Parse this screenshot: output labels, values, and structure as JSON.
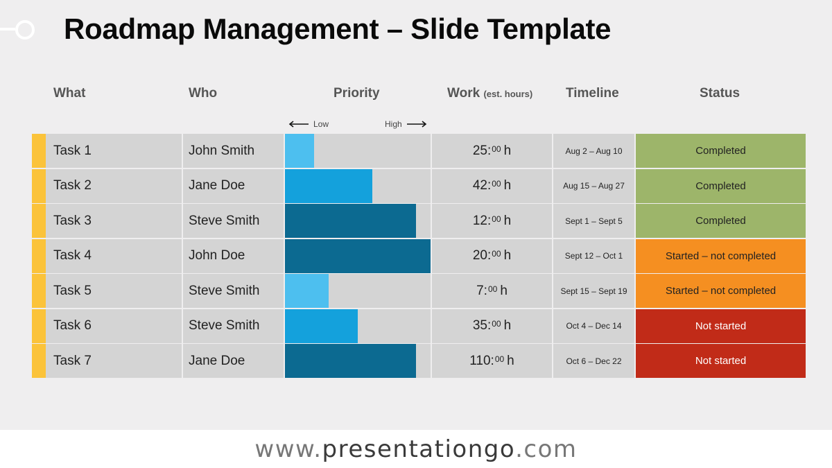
{
  "title": "Roadmap Management – Slide Template",
  "headers": {
    "what": "What",
    "who": "Who",
    "priority": "Priority",
    "work": "Work",
    "work_unit": "(est. hours)",
    "timeline": "Timeline",
    "status": "Status"
  },
  "priority_scale": {
    "low": "Low",
    "high": "High"
  },
  "colors": {
    "accent": "#fbc33a",
    "priority_low": "#4dbfef",
    "priority_mid": "#14a1dc",
    "priority_high": "#0c6a91",
    "completed": "#9db56a",
    "started": "#f58f21",
    "not_started": "#c12b18"
  },
  "tasks": [
    {
      "what": "Task 1",
      "who": "John Smith",
      "priority": 0.2,
      "priority_level": "low",
      "work_hours": "25:",
      "work_minutes": "00",
      "work_suffix": "h",
      "timeline": "Aug 2 – Aug 10",
      "status": "Completed",
      "status_type": "completed"
    },
    {
      "what": "Task 2",
      "who": "Jane Doe",
      "priority": 0.6,
      "priority_level": "mid",
      "work_hours": "42:",
      "work_minutes": "00",
      "work_suffix": "h",
      "timeline": "Aug 15 – Aug 27",
      "status": "Completed",
      "status_type": "completed"
    },
    {
      "what": "Task 3",
      "who": "Steve Smith",
      "priority": 0.9,
      "priority_level": "high",
      "work_hours": "12:",
      "work_minutes": "00",
      "work_suffix": "h",
      "timeline": "Sept 1 – Sept 5",
      "status": "Completed",
      "status_type": "completed"
    },
    {
      "what": "Task 4",
      "who": "John Doe",
      "priority": 1.0,
      "priority_level": "high",
      "work_hours": "20:",
      "work_minutes": "00",
      "work_suffix": "h",
      "timeline": "Sept 12 – Oct 1",
      "status": "Started – not completed",
      "status_type": "started"
    },
    {
      "what": "Task 5",
      "who": "Steve Smith",
      "priority": 0.3,
      "priority_level": "low",
      "work_hours": "7:",
      "work_minutes": "00",
      "work_suffix": "h",
      "timeline": "Sept 15 – Sept 19",
      "status": "Started – not completed",
      "status_type": "started"
    },
    {
      "what": "Task 6",
      "who": "Steve Smith",
      "priority": 0.5,
      "priority_level": "mid",
      "work_hours": "35:",
      "work_minutes": "00",
      "work_suffix": "h",
      "timeline": "Oct 4 – Dec 14",
      "status": "Not started",
      "status_type": "not_started"
    },
    {
      "what": "Task 7",
      "who": "Jane Doe",
      "priority": 0.9,
      "priority_level": "high",
      "work_hours": "110:",
      "work_minutes": "00",
      "work_suffix": "h",
      "timeline": "Oct 6 – Dec 22",
      "status": "Not started",
      "status_type": "not_started"
    }
  ],
  "footer": {
    "prefix": "www.",
    "brand": "presentationgo",
    "suffix": ".com"
  }
}
